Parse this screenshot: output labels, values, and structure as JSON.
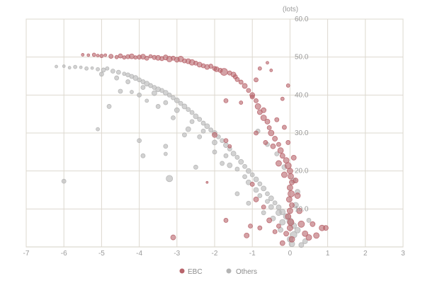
{
  "chart_data": {
    "type": "scatter",
    "title": "",
    "xlabel": "",
    "ylabel": "(lots)",
    "xlim": [
      -7,
      3
    ],
    "ylim": [
      0,
      60
    ],
    "x_ticks": [
      "-7",
      "-6",
      "-5",
      "-4",
      "-3",
      "-2",
      "-1",
      "0",
      "1",
      "2",
      "3"
    ],
    "y_ticks": [
      "10.0",
      "20.0",
      "30.0",
      "40.0",
      "50.0",
      "60.0"
    ],
    "grid": true,
    "legend": "bottom-center",
    "series": [
      {
        "name": "EBC",
        "color": "#b8646b",
        "points": [
          [
            -5.5,
            50.6,
            2
          ],
          [
            -5.35,
            50.5,
            2
          ],
          [
            -5.2,
            50.6,
            2.5
          ],
          [
            -5.1,
            50.4,
            2
          ],
          [
            -5.0,
            50.3,
            2.5
          ],
          [
            -4.9,
            50.5,
            2
          ],
          [
            -4.75,
            50.2,
            3
          ],
          [
            -4.6,
            50.0,
            2.5
          ],
          [
            -4.5,
            50.3,
            3
          ],
          [
            -4.4,
            49.9,
            2.5
          ],
          [
            -4.3,
            50.1,
            3
          ],
          [
            -4.2,
            50.2,
            3.5
          ],
          [
            -4.1,
            49.9,
            2.5
          ],
          [
            -4.0,
            50.0,
            3
          ],
          [
            -3.9,
            50.1,
            3.5
          ],
          [
            -3.8,
            49.7,
            3
          ],
          [
            -3.7,
            50.2,
            2.5
          ],
          [
            -3.6,
            49.9,
            3
          ],
          [
            -3.5,
            49.8,
            3.5
          ],
          [
            -3.4,
            49.6,
            3
          ],
          [
            -3.3,
            49.9,
            3.5
          ],
          [
            -3.2,
            49.5,
            4
          ],
          [
            -3.1,
            49.7,
            3
          ],
          [
            -3.0,
            49.3,
            3.5
          ],
          [
            -2.9,
            49.5,
            4
          ],
          [
            -2.8,
            49.0,
            3
          ],
          [
            -2.7,
            48.9,
            3.5
          ],
          [
            -2.6,
            48.6,
            4
          ],
          [
            -2.5,
            48.4,
            3
          ],
          [
            -2.4,
            48.0,
            3.5
          ],
          [
            -2.3,
            47.7,
            3
          ],
          [
            -2.2,
            47.4,
            3.5
          ],
          [
            -2.1,
            47.6,
            3
          ],
          [
            -2.0,
            47.0,
            3
          ],
          [
            -1.95,
            46.8,
            3.5
          ],
          [
            -1.85,
            46.5,
            3
          ],
          [
            -1.75,
            46.1,
            5
          ],
          [
            -1.6,
            45.8,
            3
          ],
          [
            -1.5,
            45.4,
            3.5
          ],
          [
            -1.45,
            44.8,
            3
          ],
          [
            -1.4,
            44.1,
            3
          ],
          [
            -1.3,
            43.4,
            3
          ],
          [
            -1.2,
            42.4,
            3.5
          ],
          [
            -1.1,
            41.2,
            3
          ],
          [
            -1.0,
            40.0,
            3.5
          ],
          [
            -0.9,
            38.5,
            3
          ],
          [
            -0.85,
            37.0,
            4
          ],
          [
            -0.8,
            35.5,
            3.5
          ],
          [
            -0.7,
            34.0,
            4
          ],
          [
            -0.6,
            33.0,
            3.5
          ],
          [
            -0.55,
            31.4,
            3
          ],
          [
            -0.5,
            30.0,
            4
          ],
          [
            -0.4,
            28.5,
            3.5
          ],
          [
            -0.3,
            27.0,
            3
          ],
          [
            -0.25,
            25.4,
            4
          ],
          [
            -0.2,
            24.0,
            3.5
          ],
          [
            -0.1,
            22.8,
            4
          ],
          [
            -0.05,
            21.4,
            4.5
          ],
          [
            0.0,
            20.0,
            4
          ],
          [
            0.02,
            18.6,
            4
          ],
          [
            0.05,
            17.0,
            3.5
          ],
          [
            0.0,
            15.6,
            4
          ],
          [
            0.03,
            14.0,
            4.5
          ],
          [
            -0.02,
            12.5,
            4
          ],
          [
            0.05,
            11.0,
            3.5
          ],
          [
            0.0,
            9.5,
            4
          ],
          [
            -0.05,
            8.0,
            4
          ],
          [
            0.02,
            6.5,
            4.5
          ],
          [
            0.0,
            5.0,
            4
          ],
          [
            -0.1,
            3.5,
            3.5
          ],
          [
            0.05,
            2.0,
            4
          ],
          [
            -0.2,
            1.0,
            3.5
          ],
          [
            -0.6,
            48.5,
            2
          ],
          [
            -0.8,
            47.0,
            2.5
          ],
          [
            -0.5,
            46.5,
            2
          ],
          [
            -1.3,
            38.0,
            2.5
          ],
          [
            -1.7,
            38.5,
            3
          ],
          [
            -0.9,
            44.0,
            3
          ],
          [
            -1.0,
            39.5,
            3
          ],
          [
            -0.7,
            36.0,
            3.5
          ],
          [
            -0.35,
            33.5,
            3
          ],
          [
            -0.15,
            31.5,
            3
          ],
          [
            -0.45,
            26.5,
            3.5
          ],
          [
            -0.3,
            22.0,
            4
          ],
          [
            -0.15,
            19.0,
            4
          ],
          [
            0.1,
            23.5,
            3.5
          ],
          [
            -0.05,
            27.5,
            3
          ],
          [
            0.15,
            17.5,
            3.5
          ],
          [
            0.2,
            13.5,
            4
          ],
          [
            0.25,
            9.5,
            4
          ],
          [
            0.3,
            6.0,
            4.5
          ],
          [
            0.4,
            3.5,
            4
          ],
          [
            0.5,
            2.5,
            4
          ],
          [
            0.7,
            3.0,
            4
          ],
          [
            0.85,
            5.0,
            4
          ],
          [
            0.95,
            5.0,
            3.5
          ],
          [
            0.6,
            6.0,
            3.5
          ],
          [
            -1.7,
            28.0,
            3
          ],
          [
            -1.6,
            26.5,
            2.5
          ],
          [
            -1.0,
            16.5,
            3
          ],
          [
            -0.9,
            12.5,
            3.5
          ],
          [
            -0.7,
            10.5,
            3
          ],
          [
            -0.55,
            7.0,
            3.5
          ],
          [
            -0.4,
            4.0,
            3
          ],
          [
            -0.3,
            5.5,
            3
          ],
          [
            -0.8,
            5.0,
            3
          ],
          [
            -1.7,
            7.0,
            3
          ],
          [
            -3.1,
            2.5,
            3.5
          ],
          [
            -2.2,
            17.0,
            1.5
          ],
          [
            -1.05,
            5.5,
            3
          ],
          [
            -1.15,
            3.0,
            3.5
          ],
          [
            -2.0,
            29.5,
            3.5
          ],
          [
            -0.9,
            30.0,
            3
          ],
          [
            -0.65,
            27.5,
            3
          ],
          [
            -0.2,
            39.0,
            2.5
          ],
          [
            -0.05,
            42.5,
            2.5
          ]
        ]
      },
      {
        "name": "Others",
        "color": "#b4b4b4",
        "points": [
          [
            -6.2,
            47.5,
            2
          ],
          [
            -6.0,
            47.6,
            2
          ],
          [
            -5.85,
            47.2,
            2
          ],
          [
            -5.7,
            47.4,
            2.5
          ],
          [
            -5.55,
            47.3,
            2
          ],
          [
            -5.4,
            47.0,
            2.5
          ],
          [
            -5.25,
            47.1,
            2
          ],
          [
            -5.1,
            46.8,
            2.5
          ],
          [
            -4.95,
            46.6,
            3
          ],
          [
            -4.85,
            47.0,
            2.5
          ],
          [
            -4.7,
            46.3,
            3
          ],
          [
            -4.55,
            46.0,
            3
          ],
          [
            -4.4,
            45.6,
            2.5
          ],
          [
            -4.3,
            45.3,
            3
          ],
          [
            -4.2,
            44.9,
            3
          ],
          [
            -4.1,
            44.5,
            3.5
          ],
          [
            -4.0,
            44.0,
            3
          ],
          [
            -3.9,
            43.5,
            3
          ],
          [
            -3.8,
            43.0,
            3.5
          ],
          [
            -3.7,
            42.5,
            3
          ],
          [
            -3.6,
            42.0,
            3
          ],
          [
            -3.5,
            41.5,
            3.5
          ],
          [
            -3.4,
            41.2,
            3
          ],
          [
            -3.3,
            40.6,
            3.5
          ],
          [
            -3.2,
            40.0,
            3
          ],
          [
            -3.1,
            39.3,
            3
          ],
          [
            -3.0,
            38.6,
            3.5
          ],
          [
            -2.9,
            37.8,
            3
          ],
          [
            -2.8,
            37.0,
            3.5
          ],
          [
            -2.7,
            36.2,
            3
          ],
          [
            -2.6,
            35.4,
            3
          ],
          [
            -2.5,
            34.4,
            3.5
          ],
          [
            -2.4,
            33.6,
            3
          ],
          [
            -2.3,
            32.6,
            3
          ],
          [
            -2.2,
            31.8,
            3.5
          ],
          [
            -2.1,
            30.8,
            3
          ],
          [
            -2.0,
            30.0,
            3.5
          ],
          [
            -1.9,
            29.0,
            3
          ],
          [
            -1.8,
            28.0,
            3
          ],
          [
            -1.7,
            26.8,
            3.5
          ],
          [
            -1.6,
            25.8,
            3
          ],
          [
            -1.5,
            24.6,
            3.5
          ],
          [
            -1.4,
            23.6,
            3
          ],
          [
            -1.3,
            22.4,
            3.5
          ],
          [
            -1.2,
            21.2,
            3
          ],
          [
            -1.1,
            20.0,
            3.5
          ],
          [
            -1.0,
            19.0,
            3
          ],
          [
            -0.9,
            17.8,
            3.5
          ],
          [
            -0.8,
            16.6,
            3
          ],
          [
            -0.7,
            15.4,
            3.5
          ],
          [
            -0.6,
            14.0,
            3
          ],
          [
            -0.5,
            12.8,
            3.5
          ],
          [
            -0.4,
            11.6,
            3
          ],
          [
            -0.3,
            10.4,
            3.5
          ],
          [
            -0.2,
            9.2,
            4
          ],
          [
            -0.1,
            8.0,
            4
          ],
          [
            0.0,
            6.8,
            4.5
          ],
          [
            0.1,
            5.6,
            4
          ],
          [
            0.2,
            4.4,
            4
          ],
          [
            0.1,
            3.2,
            4.5
          ],
          [
            0.0,
            2.0,
            4
          ],
          [
            -4.6,
            44.5,
            3
          ],
          [
            -4.3,
            43.5,
            3
          ],
          [
            -3.9,
            42.0,
            3
          ],
          [
            -3.6,
            40.5,
            3.5
          ],
          [
            -3.3,
            38.0,
            3
          ],
          [
            -3.0,
            36.0,
            3.5
          ],
          [
            -2.6,
            33.0,
            3
          ],
          [
            -2.3,
            30.5,
            3
          ],
          [
            -2.0,
            27.5,
            3.5
          ],
          [
            -1.7,
            24.0,
            3
          ],
          [
            -1.4,
            20.5,
            3
          ],
          [
            -1.1,
            17.0,
            3.5
          ],
          [
            -0.8,
            13.5,
            3
          ],
          [
            -0.5,
            10.5,
            3.5
          ],
          [
            -0.2,
            6.5,
            4
          ],
          [
            -4.0,
            40.0,
            3
          ],
          [
            -3.5,
            37.0,
            3
          ],
          [
            -3.1,
            34.0,
            3
          ],
          [
            -2.7,
            31.0,
            3.5
          ],
          [
            -2.4,
            29.0,
            3
          ],
          [
            -2.0,
            25.0,
            3
          ],
          [
            -1.6,
            21.5,
            3.5
          ],
          [
            -1.2,
            18.5,
            3
          ],
          [
            -0.9,
            15.0,
            3.5
          ],
          [
            -0.6,
            12.0,
            3
          ],
          [
            -0.3,
            9.0,
            4
          ],
          [
            0.15,
            11.0,
            4
          ],
          [
            0.2,
            14.5,
            3.5
          ],
          [
            0.1,
            17.5,
            3.5
          ],
          [
            -0.15,
            21.0,
            3.5
          ],
          [
            -0.35,
            24.5,
            3
          ],
          [
            -0.6,
            27.0,
            3
          ],
          [
            -0.85,
            30.5,
            3
          ],
          [
            -5.0,
            45.5,
            3
          ],
          [
            -4.5,
            41.0,
            3
          ],
          [
            -4.2,
            40.8,
            2.5
          ],
          [
            -3.8,
            38.5,
            2.5
          ],
          [
            -4.8,
            37.0,
            3
          ],
          [
            -5.1,
            31.0,
            2.5
          ],
          [
            -4.0,
            28.0,
            3
          ],
          [
            -3.3,
            26.5,
            3
          ],
          [
            -2.8,
            29.5,
            3
          ],
          [
            -3.9,
            24.0,
            3
          ],
          [
            -3.3,
            24.5,
            2.5
          ],
          [
            -3.2,
            18.0,
            4.5
          ],
          [
            -6.0,
            17.3,
            3
          ],
          [
            -2.5,
            21.0,
            3
          ],
          [
            -1.8,
            22.0,
            3
          ],
          [
            -1.4,
            14.0,
            3
          ],
          [
            -1.1,
            11.5,
            3
          ],
          [
            -0.7,
            9.0,
            3
          ],
          [
            -0.45,
            7.5,
            3.5
          ],
          [
            -0.25,
            4.5,
            3.5
          ],
          [
            0.05,
            0.8,
            4
          ],
          [
            0.3,
            0.5,
            3.5
          ],
          [
            0.4,
            1.5,
            3.5
          ],
          [
            0.5,
            7.0,
            3
          ]
        ]
      }
    ]
  }
}
